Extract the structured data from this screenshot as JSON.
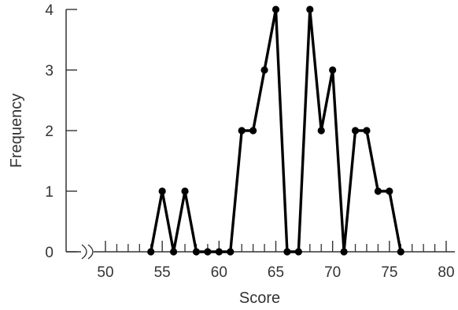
{
  "chart_data": {
    "type": "line",
    "title": "",
    "xlabel": "Score",
    "ylabel": "Frequency",
    "xlim": [
      50,
      80
    ],
    "ylim": [
      0,
      4
    ],
    "x_ticks": [
      50,
      55,
      60,
      65,
      70,
      75,
      80
    ],
    "y_ticks": [
      0,
      1,
      2,
      3,
      4
    ],
    "x_axis_break": true,
    "grid": false,
    "legend": "none",
    "color": "#000000",
    "series": [
      {
        "x": [
          54,
          55,
          56,
          57,
          58,
          59,
          60,
          61,
          62,
          63,
          64,
          65,
          66,
          67,
          68,
          69,
          70,
          71,
          72,
          73,
          74,
          75,
          76
        ],
        "values": [
          0,
          1,
          0,
          1,
          0,
          0,
          0,
          0,
          2,
          2,
          3,
          4,
          0,
          0,
          4,
          2,
          3,
          0,
          2,
          2,
          1,
          1,
          0
        ]
      }
    ]
  }
}
